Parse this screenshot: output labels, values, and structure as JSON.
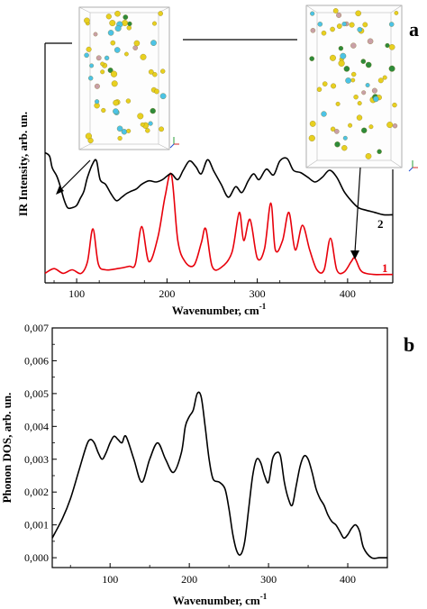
{
  "figure": {
    "panel_a": "a",
    "panel_b": "b"
  },
  "chart_data": [
    {
      "type": "line",
      "panel": "a",
      "xlabel": "Wavenumber, cm",
      "xlabel_sup": "-1",
      "ylabel": "IR Intensity, arb. un.",
      "xlim": [
        65,
        450
      ],
      "xticks": [
        100,
        200,
        300,
        400
      ],
      "y_ticks_shown": false,
      "insets": [
        "crystal-structure-left",
        "crystal-structure-right"
      ],
      "series": [
        {
          "name": "1",
          "color": "#e8000b",
          "x": [
            65,
            75,
            85,
            95,
            105,
            112,
            118,
            124,
            132,
            145,
            158,
            165,
            172,
            180,
            190,
            198,
            205,
            212,
            220,
            230,
            238,
            243,
            250,
            260,
            272,
            280,
            285,
            292,
            300,
            308,
            315,
            320,
            328,
            335,
            342,
            350,
            358,
            366,
            374,
            381,
            388,
            396,
            404,
            408,
            414,
            420,
            430,
            440,
            450
          ],
          "y": [
            0.02,
            0.06,
            0.02,
            0.05,
            0.02,
            0.12,
            0.4,
            0.1,
            0.05,
            0.06,
            0.08,
            0.1,
            0.42,
            0.12,
            0.33,
            0.68,
            0.86,
            0.3,
            0.12,
            0.09,
            0.28,
            0.4,
            0.08,
            0.07,
            0.2,
            0.54,
            0.3,
            0.48,
            0.15,
            0.23,
            0.62,
            0.22,
            0.3,
            0.54,
            0.22,
            0.43,
            0.22,
            0.05,
            0.05,
            0.32,
            0.05,
            0.03,
            0.12,
            0.15,
            0.05,
            0.02,
            0.01,
            0.01,
            0.01
          ]
        },
        {
          "name": "2",
          "color": "#000000",
          "x": [
            65,
            70,
            73,
            78,
            82,
            86,
            90,
            95,
            100,
            104,
            108,
            112,
            118,
            122,
            126,
            132,
            138,
            144,
            150,
            155,
            160,
            166,
            172,
            180,
            188,
            195,
            200,
            205,
            212,
            218,
            225,
            232,
            238,
            245,
            252,
            260,
            268,
            276,
            283,
            290,
            296,
            302,
            310,
            318,
            325,
            333,
            340,
            348,
            356,
            364,
            372,
            380,
            388,
            396,
            404,
            412,
            420,
            430,
            440,
            450
          ],
          "y": [
            1.05,
            1.02,
            0.92,
            0.85,
            0.76,
            0.65,
            0.58,
            0.58,
            0.6,
            0.66,
            0.72,
            0.84,
            0.96,
            0.98,
            0.82,
            0.78,
            0.7,
            0.64,
            0.67,
            0.7,
            0.72,
            0.74,
            0.78,
            0.81,
            0.8,
            0.82,
            0.85,
            0.87,
            0.82,
            0.9,
            0.98,
            0.93,
            0.87,
            0.99,
            0.89,
            0.78,
            0.67,
            0.76,
            0.71,
            0.81,
            0.87,
            0.82,
            0.91,
            0.86,
            0.98,
            1.0,
            0.9,
            0.88,
            0.84,
            0.8,
            0.84,
            0.9,
            0.84,
            0.72,
            0.64,
            0.58,
            0.56,
            0.54,
            0.52,
            0.52
          ]
        }
      ]
    },
    {
      "type": "line",
      "panel": "b",
      "xlabel": "Wavenumber, cm",
      "xlabel_sup": "-1",
      "ylabel": "Phonon DOS, arb. un.",
      "xlim": [
        27,
        450
      ],
      "ylim": [
        -0.0003,
        0.007
      ],
      "xticks": [
        100,
        200,
        300,
        400
      ],
      "yticks": [
        "0,000",
        "0,001",
        "0,002",
        "0,003",
        "0,004",
        "0,005",
        "0,006",
        "0,007"
      ],
      "series": [
        {
          "color": "#000000",
          "x": [
            27,
            40,
            50,
            60,
            70,
            75,
            80,
            85,
            90,
            95,
            100,
            105,
            110,
            115,
            120,
            130,
            140,
            150,
            160,
            170,
            180,
            190,
            195,
            200,
            205,
            210,
            215,
            220,
            225,
            230,
            238,
            245,
            250,
            255,
            260,
            265,
            270,
            275,
            280,
            285,
            290,
            295,
            300,
            305,
            310,
            315,
            320,
            325,
            330,
            335,
            340,
            345,
            350,
            355,
            360,
            365,
            370,
            375,
            380,
            385,
            390,
            395,
            400,
            405,
            410,
            415,
            420,
            430,
            440,
            450
          ],
          "y": [
            0.0006,
            0.0012,
            0.0018,
            0.0026,
            0.0034,
            0.0036,
            0.0035,
            0.0032,
            0.003,
            0.0032,
            0.0035,
            0.0037,
            0.0036,
            0.0035,
            0.0037,
            0.003,
            0.0023,
            0.003,
            0.0035,
            0.003,
            0.0026,
            0.0032,
            0.004,
            0.0043,
            0.0045,
            0.005,
            0.0049,
            0.004,
            0.003,
            0.0024,
            0.0023,
            0.0021,
            0.0015,
            0.0007,
            0.0002,
            0.0001,
            0.0005,
            0.0015,
            0.0025,
            0.003,
            0.0029,
            0.0025,
            0.0023,
            0.003,
            0.0032,
            0.0031,
            0.0023,
            0.0018,
            0.0016,
            0.0022,
            0.0028,
            0.0031,
            0.003,
            0.0026,
            0.0021,
            0.0018,
            0.0016,
            0.0013,
            0.0011,
            0.001,
            0.0008,
            0.0006,
            0.0007,
            0.0009,
            0.001,
            0.0008,
            0.0003,
            0.0,
            0.0,
            0.0
          ]
        }
      ]
    }
  ]
}
